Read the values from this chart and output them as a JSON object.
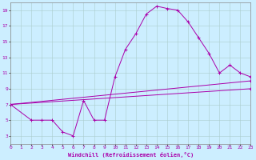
{
  "bg_color": "#cceeff",
  "grid_color": "#aacccc",
  "line_color": "#aa00aa",
  "xlabel": "Windchill (Refroidissement éolien,°C)",
  "xlim": [
    0,
    23
  ],
  "ylim": [
    2,
    20
  ],
  "xticks": [
    0,
    1,
    2,
    3,
    4,
    5,
    6,
    7,
    8,
    9,
    10,
    11,
    12,
    13,
    14,
    15,
    16,
    17,
    18,
    19,
    20,
    21,
    22,
    23
  ],
  "yticks": [
    3,
    5,
    7,
    9,
    11,
    13,
    15,
    17,
    19
  ],
  "line1_x": [
    0,
    2,
    3,
    4,
    5,
    6,
    7,
    8,
    9,
    10,
    11,
    12,
    13,
    14,
    15,
    16,
    17,
    18,
    19,
    20,
    21,
    22,
    23
  ],
  "line1_y": [
    7,
    5,
    5,
    5,
    3.5,
    3,
    7.5,
    5,
    5,
    10.5,
    14,
    16,
    18.5,
    19.5,
    19.2,
    19,
    17.5,
    15.5,
    13.5,
    11,
    12,
    11,
    10.5
  ],
  "line2_x": [
    0,
    23
  ],
  "line2_y": [
    7,
    10
  ],
  "line3_x": [
    0,
    23
  ],
  "line3_y": [
    7,
    9
  ]
}
